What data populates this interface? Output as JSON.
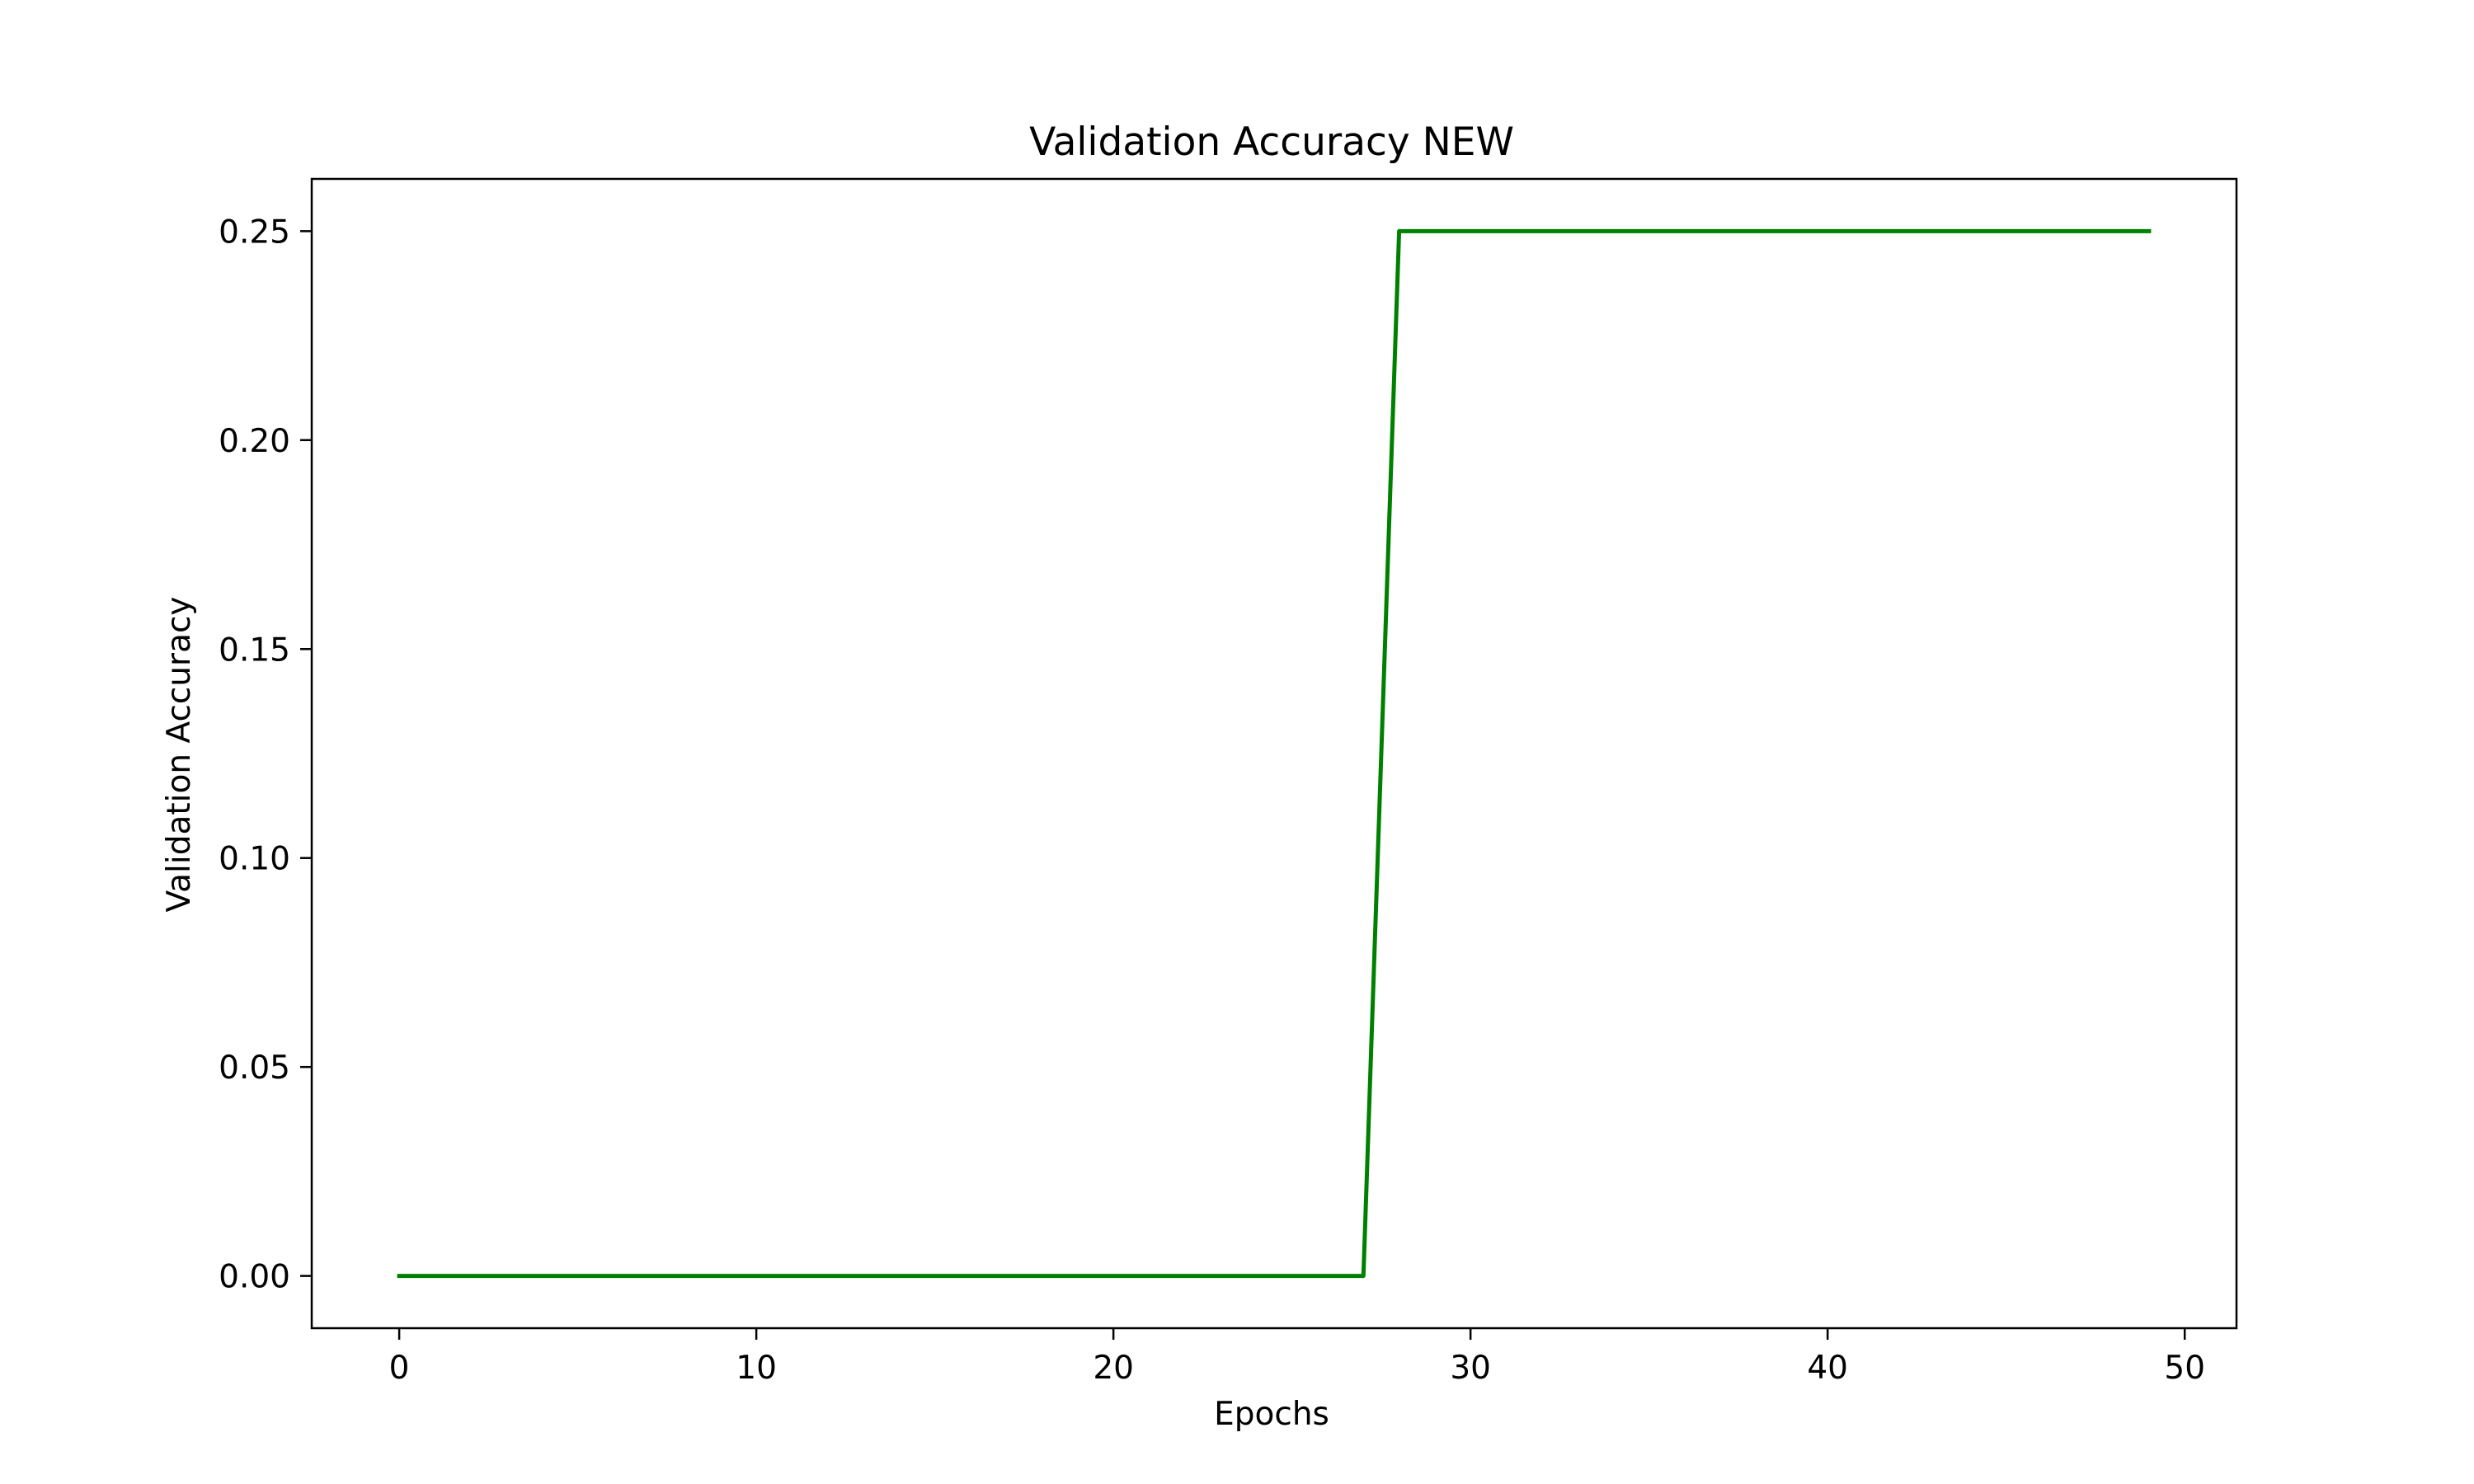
{
  "chart_data": {
    "type": "line",
    "title": "Validation Accuracy NEW",
    "xlabel": "Epochs",
    "ylabel": "Validation Accuracy",
    "xlim": [
      -2.45,
      51.45
    ],
    "ylim": [
      -0.0125,
      0.2625
    ],
    "xticks": [
      0,
      10,
      20,
      30,
      40,
      50
    ],
    "xtick_labels": [
      "0",
      "10",
      "20",
      "30",
      "40",
      "50"
    ],
    "yticks": [
      0.0,
      0.05,
      0.1,
      0.15,
      0.2,
      0.25
    ],
    "ytick_labels": [
      "0.00",
      "0.05",
      "0.10",
      "0.15",
      "0.20",
      "0.25"
    ],
    "grid": false,
    "series": [
      {
        "color": "#008000",
        "x": [
          0,
          1,
          2,
          3,
          4,
          5,
          6,
          7,
          8,
          9,
          10,
          11,
          12,
          13,
          14,
          15,
          16,
          17,
          18,
          19,
          20,
          21,
          22,
          23,
          24,
          25,
          26,
          27,
          28,
          29,
          30,
          31,
          32,
          33,
          34,
          35,
          36,
          37,
          38,
          39,
          40,
          41,
          42,
          43,
          44,
          45,
          46,
          47,
          48,
          49
        ],
        "values": [
          0,
          0,
          0,
          0,
          0,
          0,
          0,
          0,
          0,
          0,
          0,
          0,
          0,
          0,
          0,
          0,
          0,
          0,
          0,
          0,
          0,
          0,
          0,
          0,
          0,
          0,
          0,
          0,
          0.25,
          0.25,
          0.25,
          0.25,
          0.25,
          0.25,
          0.25,
          0.25,
          0.25,
          0.25,
          0.25,
          0.25,
          0.25,
          0.25,
          0.25,
          0.25,
          0.25,
          0.25,
          0.25,
          0.25,
          0.25,
          0.25
        ]
      }
    ]
  }
}
